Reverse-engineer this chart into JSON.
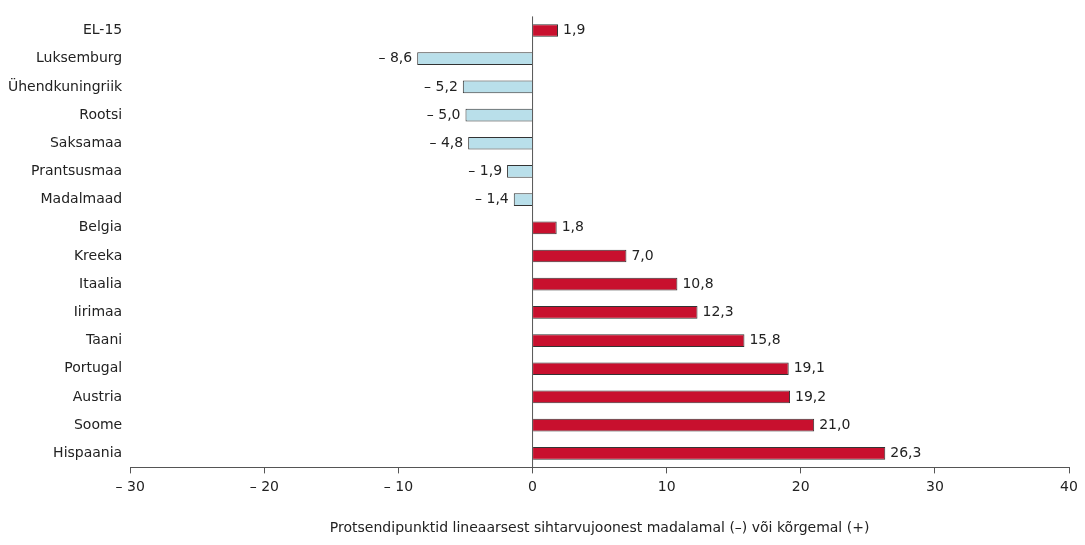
{
  "chart_data": {
    "type": "bar",
    "orientation": "horizontal",
    "xlabel": "Protsendipunktid lineaarsest sihtarvujoonest madalamal (–) või kõrgemal (+)",
    "categories": [
      "EL-15",
      "Luksemburg",
      "Ühendkuningriik",
      "Rootsi",
      "Saksamaa",
      "Prantsusmaa",
      "Madalmaad",
      "Belgia",
      "Kreeka",
      "Itaalia",
      "Iirimaa",
      "Taani",
      "Portugal",
      "Austria",
      "Soome",
      "Hispaania"
    ],
    "values": [
      1.9,
      -8.6,
      -5.2,
      -5.0,
      -4.8,
      -1.9,
      -1.4,
      1.8,
      7.0,
      10.8,
      12.3,
      15.8,
      19.1,
      19.2,
      21.0,
      26.3
    ],
    "value_labels": [
      "1,9",
      "– 8,6",
      "– 5,2",
      "– 5,0",
      "– 4,8",
      "– 1,9",
      "– 1,4",
      "1,8",
      "7,0",
      "10,8",
      "12,3",
      "15,8",
      "19,1",
      "19,2",
      "21,0",
      "26,3"
    ],
    "colors": [
      "#c8102e",
      "#b9dfea",
      "#b9dfea",
      "#b9dfea",
      "#b9dfea",
      "#b9dfea",
      "#b9dfea",
      "#c8102e",
      "#c8102e",
      "#c8102e",
      "#c8102e",
      "#c8102e",
      "#c8102e",
      "#c8102e",
      "#c8102e",
      "#c8102e"
    ],
    "xlim": [
      -30,
      40
    ],
    "xticks": [
      {
        "value": -30,
        "label": "– 30"
      },
      {
        "value": -20,
        "label": "– 20"
      },
      {
        "value": -10,
        "label": "– 10"
      },
      0,
      10,
      20,
      30,
      40
    ],
    "ref_lines": [
      {
        "axis": "x",
        "value": 0,
        "color": "#555555"
      }
    ],
    "grid": false,
    "legend": false
  }
}
